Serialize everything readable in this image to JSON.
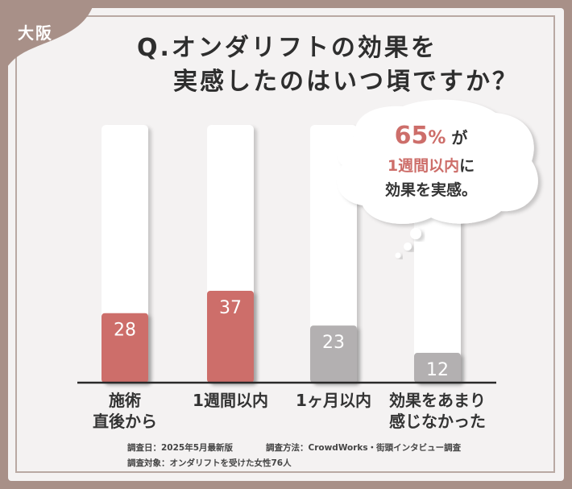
{
  "region_label": "大阪",
  "title": {
    "line1": "Q.オンダリフトの効果を",
    "line2": "実感したのはいつ頃ですか？"
  },
  "callout": {
    "percent_value": "65",
    "percent_sign": "%",
    "line1_suffix": "が",
    "line2_accent": "1週間以内",
    "line2_suffix": "に",
    "line3": "効果を実感。"
  },
  "footnotes": {
    "survey_date": "調査日：2025年5月最新版",
    "survey_method": "調査方法：CrowdWorks・街頭インタビュー調査",
    "survey_target": "調査対象：オンダリフトを受けた女性76人"
  },
  "colors": {
    "frame": "#a89088",
    "panel": "#f4f2f2",
    "bar_highlight": "#cd6e6a",
    "bar_muted": "#b3b0b1",
    "accent_text": "#cd6e6a"
  },
  "chart_data": {
    "type": "bar",
    "categories": [
      {
        "line1": "施術",
        "line2": "直後から"
      },
      {
        "line1": "1週間以内",
        "line2": ""
      },
      {
        "line1": "1ヶ月以内",
        "line2": ""
      },
      {
        "line1": "効果をあまり",
        "line2": "感じなかった"
      }
    ],
    "values": [
      28,
      37,
      23,
      12
    ],
    "bar_colors": [
      "#cd6e6a",
      "#cd6e6a",
      "#b3b0b1",
      "#b3b0b1"
    ],
    "ylim": [
      0,
      37
    ],
    "grid": false,
    "title": "",
    "xlabel": "",
    "ylabel": ""
  }
}
